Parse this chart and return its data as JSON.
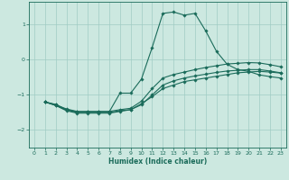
{
  "xlabel": "Humidex (Indice chaleur)",
  "xlim": [
    -0.5,
    23.5
  ],
  "ylim": [
    -2.5,
    1.65
  ],
  "yticks": [
    -2,
    -1,
    0,
    1
  ],
  "xticks": [
    0,
    1,
    2,
    3,
    4,
    5,
    6,
    7,
    8,
    9,
    10,
    11,
    12,
    13,
    14,
    15,
    16,
    17,
    18,
    19,
    20,
    21,
    22,
    23
  ],
  "bg_color": "#cce8e0",
  "grid_color": "#a0ccc4",
  "line_color": "#1a6b5a",
  "lines": [
    {
      "x": [
        1,
        2,
        3,
        4,
        5,
        6,
        7,
        8,
        9,
        10,
        11,
        12,
        13,
        14,
        15,
        16,
        17,
        18,
        19,
        20,
        21,
        22,
        23
      ],
      "y": [
        -1.2,
        -1.27,
        -1.42,
        -1.48,
        -1.48,
        -1.48,
        -1.48,
        -0.95,
        -0.95,
        -0.55,
        0.35,
        1.32,
        1.36,
        1.27,
        1.32,
        0.82,
        0.24,
        -0.13,
        -0.28,
        -0.33,
        -0.43,
        -0.48,
        -0.52
      ]
    },
    {
      "x": [
        1,
        2,
        3,
        4,
        5,
        6,
        7,
        8,
        9,
        10,
        11,
        12,
        13,
        14,
        15,
        16,
        17,
        18,
        19,
        20,
        21,
        22,
        23
      ],
      "y": [
        -1.2,
        -1.3,
        -1.43,
        -1.5,
        -1.5,
        -1.5,
        -1.5,
        -1.45,
        -1.42,
        -1.25,
        -1.05,
        -0.82,
        -0.72,
        -0.62,
        -0.57,
        -0.52,
        -0.47,
        -0.42,
        -0.37,
        -0.35,
        -0.33,
        -0.35,
        -0.38
      ]
    },
    {
      "x": [
        1,
        2,
        3,
        4,
        5,
        6,
        7,
        8,
        9,
        10,
        11,
        12,
        13,
        14,
        15,
        16,
        17,
        18,
        19,
        20,
        21,
        22,
        23
      ],
      "y": [
        -1.2,
        -1.3,
        -1.45,
        -1.52,
        -1.52,
        -1.52,
        -1.52,
        -1.47,
        -1.42,
        -1.28,
        -1.0,
        -0.72,
        -0.6,
        -0.52,
        -0.46,
        -0.41,
        -0.36,
        -0.32,
        -0.3,
        -0.28,
        -0.28,
        -0.32,
        -0.37
      ]
    },
    {
      "x": [
        1,
        2,
        3,
        4,
        5,
        6,
        7,
        8,
        9,
        10,
        11,
        12,
        13,
        14,
        15,
        16,
        17,
        18,
        19,
        20,
        21,
        22,
        23
      ],
      "y": [
        -1.2,
        -1.28,
        -1.4,
        -1.47,
        -1.47,
        -1.47,
        -1.47,
        -1.42,
        -1.38,
        -1.18,
        -0.82,
        -0.52,
        -0.42,
        -0.35,
        -0.28,
        -0.22,
        -0.17,
        -0.12,
        -0.1,
        -0.08,
        -0.09,
        -0.14,
        -0.2
      ]
    }
  ],
  "marker": "D",
  "markersize": 1.8,
  "linewidth": 0.8
}
